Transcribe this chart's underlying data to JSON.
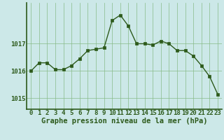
{
  "x": [
    0,
    1,
    2,
    3,
    4,
    5,
    6,
    7,
    8,
    9,
    10,
    11,
    12,
    13,
    14,
    15,
    16,
    17,
    18,
    19,
    20,
    21,
    22,
    23
  ],
  "y": [
    1016.0,
    1016.3,
    1016.3,
    1016.05,
    1016.05,
    1016.2,
    1016.45,
    1016.75,
    1016.8,
    1016.85,
    1017.85,
    1018.05,
    1017.65,
    1017.0,
    1017.0,
    1016.95,
    1017.1,
    1017.0,
    1016.75,
    1016.75,
    1016.55,
    1016.2,
    1015.8,
    1015.15
  ],
  "line_color": "#2d5a1b",
  "marker_color": "#2d5a1b",
  "bg_color": "#cce8e8",
  "grid_color": "#88bb88",
  "axis_color": "#2d5a1b",
  "border_color": "#2d5a1b",
  "title": "Graphe pression niveau de la mer (hPa)",
  "yticks": [
    1015,
    1016,
    1017
  ],
  "ylim": [
    1014.6,
    1018.5
  ],
  "xlim": [
    -0.5,
    23.5
  ],
  "title_fontsize": 7.5,
  "tick_fontsize": 6.5,
  "grid_linewidth": 0.5,
  "line_linewidth": 1.0,
  "marker_size": 2.5
}
